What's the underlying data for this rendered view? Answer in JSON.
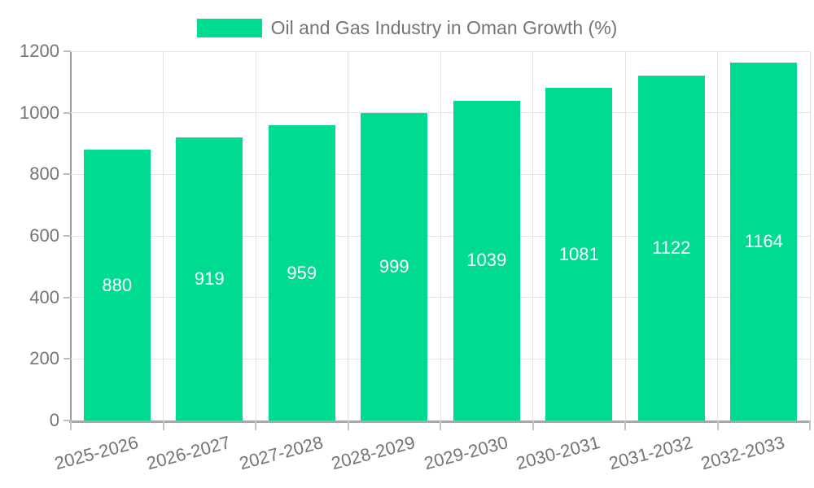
{
  "colors": {
    "bar": "#00db93",
    "bar_label_text": "#ffffff",
    "axis_text": "#747474",
    "grid_line": "#e2e2e2",
    "axis_line": "#9a9a9a",
    "background": "#ffffff"
  },
  "chart_data": {
    "type": "bar",
    "title": "Oil and Gas Industry in Oman Growth (%)",
    "legend": [
      "Oil and Gas Industry in Oman Growth (%)"
    ],
    "legend_position": "top-center",
    "categories": [
      "2025-2026",
      "2026-2027",
      "2027-2028",
      "2028-2029",
      "2029-2030",
      "2030-2031",
      "2031-2032",
      "2032-2033"
    ],
    "values": [
      880,
      919,
      959,
      999,
      1039,
      1081,
      1122,
      1164
    ],
    "bar_labels": [
      "880",
      "919",
      "959",
      "999",
      "1039",
      "1081",
      "1122",
      "1164"
    ],
    "bar_labels_inside": true,
    "xlabel": "",
    "ylabel": "",
    "ylim": [
      0,
      1200
    ],
    "yticks": [
      0,
      200,
      400,
      600,
      800,
      1000,
      1200
    ],
    "grid": true,
    "x_label_rotation_deg": -15
  }
}
